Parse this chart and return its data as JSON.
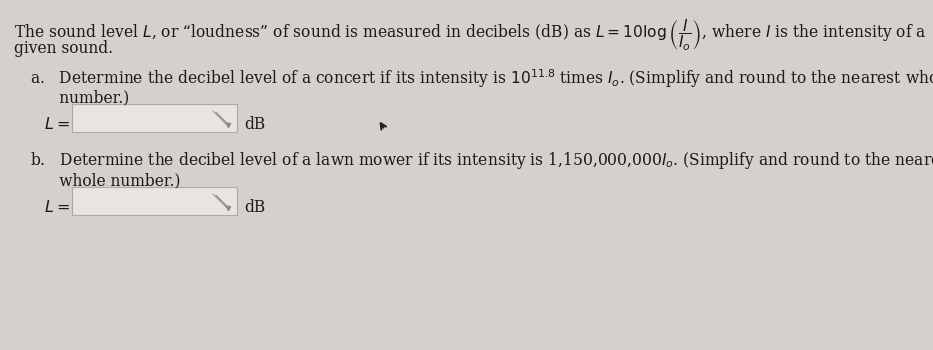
{
  "bg_color": "#d4d0cb",
  "text_color": "#1a1a1a",
  "box_facecolor": "#e8e5e0",
  "box_edgecolor": "#aaaaaa",
  "intro_line1": "The sound level $L$, or “loudness” of sound is measured in decibels (dB) as $L = 10\\log\\left(\\dfrac{I}{I_o}\\right)$, where $I$ is the intensity of a",
  "intro_line2": "given sound.",
  "part_a_line1": "a.   Determine the decibel level of a concert if its intensity is $10^{11.8}$ times $I_o$. (Simplify and round to the nearest whole",
  "part_a_line2": "      number.)",
  "part_a_label": "$L=$",
  "part_a_unit": "dB",
  "part_b_line1": "b.   Determine the decibel level of a lawn mower if its intensity is 1,150,000,000$I_o$. (Simplify and round to the nearest",
  "part_b_line2": "      whole number.)",
  "part_b_label": "$L=$",
  "part_b_unit": "dB",
  "font_size": 11.2,
  "label_font_size": 11.5,
  "figw": 9.33,
  "figh": 3.5,
  "dpi": 100
}
